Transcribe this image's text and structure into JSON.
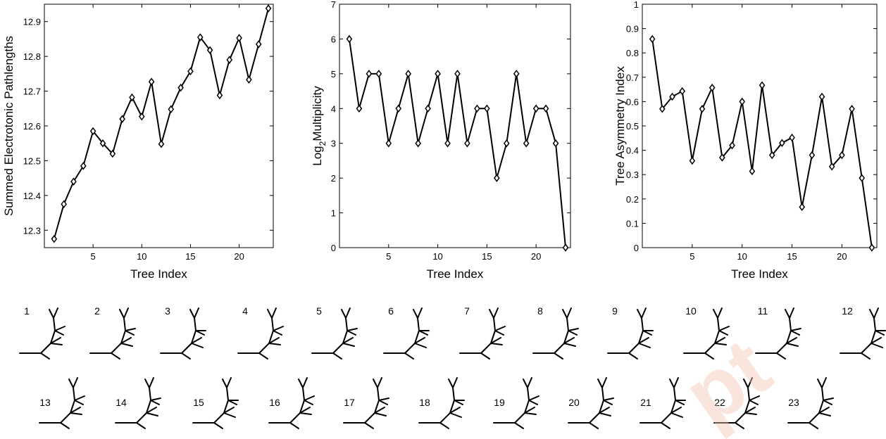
{
  "watermark": "pt",
  "chart_data": [
    {
      "type": "line",
      "xlabel": "Tree Index",
      "ylabel": "Summed Electrotonic Pathlengths",
      "x": [
        1,
        2,
        3,
        4,
        5,
        6,
        7,
        8,
        9,
        10,
        11,
        12,
        13,
        14,
        15,
        16,
        17,
        18,
        19,
        20,
        21,
        22,
        23
      ],
      "values": [
        12.275,
        12.375,
        12.44,
        12.485,
        12.585,
        12.55,
        12.52,
        12.62,
        12.682,
        12.627,
        12.727,
        12.548,
        12.648,
        12.71,
        12.757,
        12.855,
        12.818,
        12.688,
        12.79,
        12.853,
        12.733,
        12.835,
        12.938
      ],
      "xlim": [
        0,
        23.5
      ],
      "ylim": [
        12.25,
        12.95
      ],
      "xticks": [
        5,
        10,
        15,
        20
      ],
      "yticks": [
        12.3,
        12.4,
        12.5,
        12.6,
        12.7,
        12.8,
        12.9
      ],
      "marker": "diamond",
      "grid": false
    },
    {
      "type": "line",
      "xlabel": "Tree Index",
      "ylabel": "Log",
      "ylabel_sub": "2",
      "ylabel_rest": "Multiplicity",
      "x": [
        1,
        2,
        3,
        4,
        5,
        6,
        7,
        8,
        9,
        10,
        11,
        12,
        13,
        14,
        15,
        16,
        17,
        18,
        19,
        20,
        21,
        22,
        23
      ],
      "values": [
        6,
        4,
        5,
        5,
        3,
        4,
        5,
        3,
        4,
        5,
        3,
        5,
        3,
        4,
        4,
        2,
        3,
        5,
        3,
        4,
        4,
        3,
        0
      ],
      "xlim": [
        0,
        23.5
      ],
      "ylim": [
        0,
        7
      ],
      "xticks": [
        5,
        10,
        15,
        20
      ],
      "yticks": [
        0,
        1,
        2,
        3,
        4,
        5,
        6,
        7
      ],
      "marker": "diamond",
      "grid": false
    },
    {
      "type": "line",
      "xlabel": "Tree Index",
      "ylabel": "Tree Asymmetry Index",
      "x": [
        1,
        2,
        3,
        4,
        5,
        6,
        7,
        8,
        9,
        10,
        11,
        12,
        13,
        14,
        15,
        16,
        17,
        18,
        19,
        20,
        21,
        22,
        23
      ],
      "values": [
        0.857,
        0.57,
        0.62,
        0.643,
        0.357,
        0.57,
        0.657,
        0.37,
        0.42,
        0.6,
        0.314,
        0.667,
        0.38,
        0.43,
        0.452,
        0.167,
        0.38,
        0.62,
        0.333,
        0.38,
        0.57,
        0.286,
        0.0
      ],
      "xlim": [
        0,
        23.5
      ],
      "ylim": [
        0,
        1
      ],
      "xticks": [
        5,
        10,
        15,
        20
      ],
      "yticks": [
        0,
        0.1,
        0.2,
        0.3,
        0.4,
        0.5,
        0.6,
        0.7,
        0.8,
        0.9,
        1
      ],
      "marker": "diamond",
      "grid": false
    }
  ],
  "trees": {
    "labels": [
      "1",
      "2",
      "3",
      "4",
      "5",
      "6",
      "7",
      "8",
      "9",
      "10",
      "11",
      "12",
      "13",
      "14",
      "15",
      "16",
      "17",
      "18",
      "19",
      "20",
      "21",
      "22",
      "23"
    ],
    "description": "23 binary tree topologies with 8 terminal branches each",
    "branch_color": "#000000"
  }
}
